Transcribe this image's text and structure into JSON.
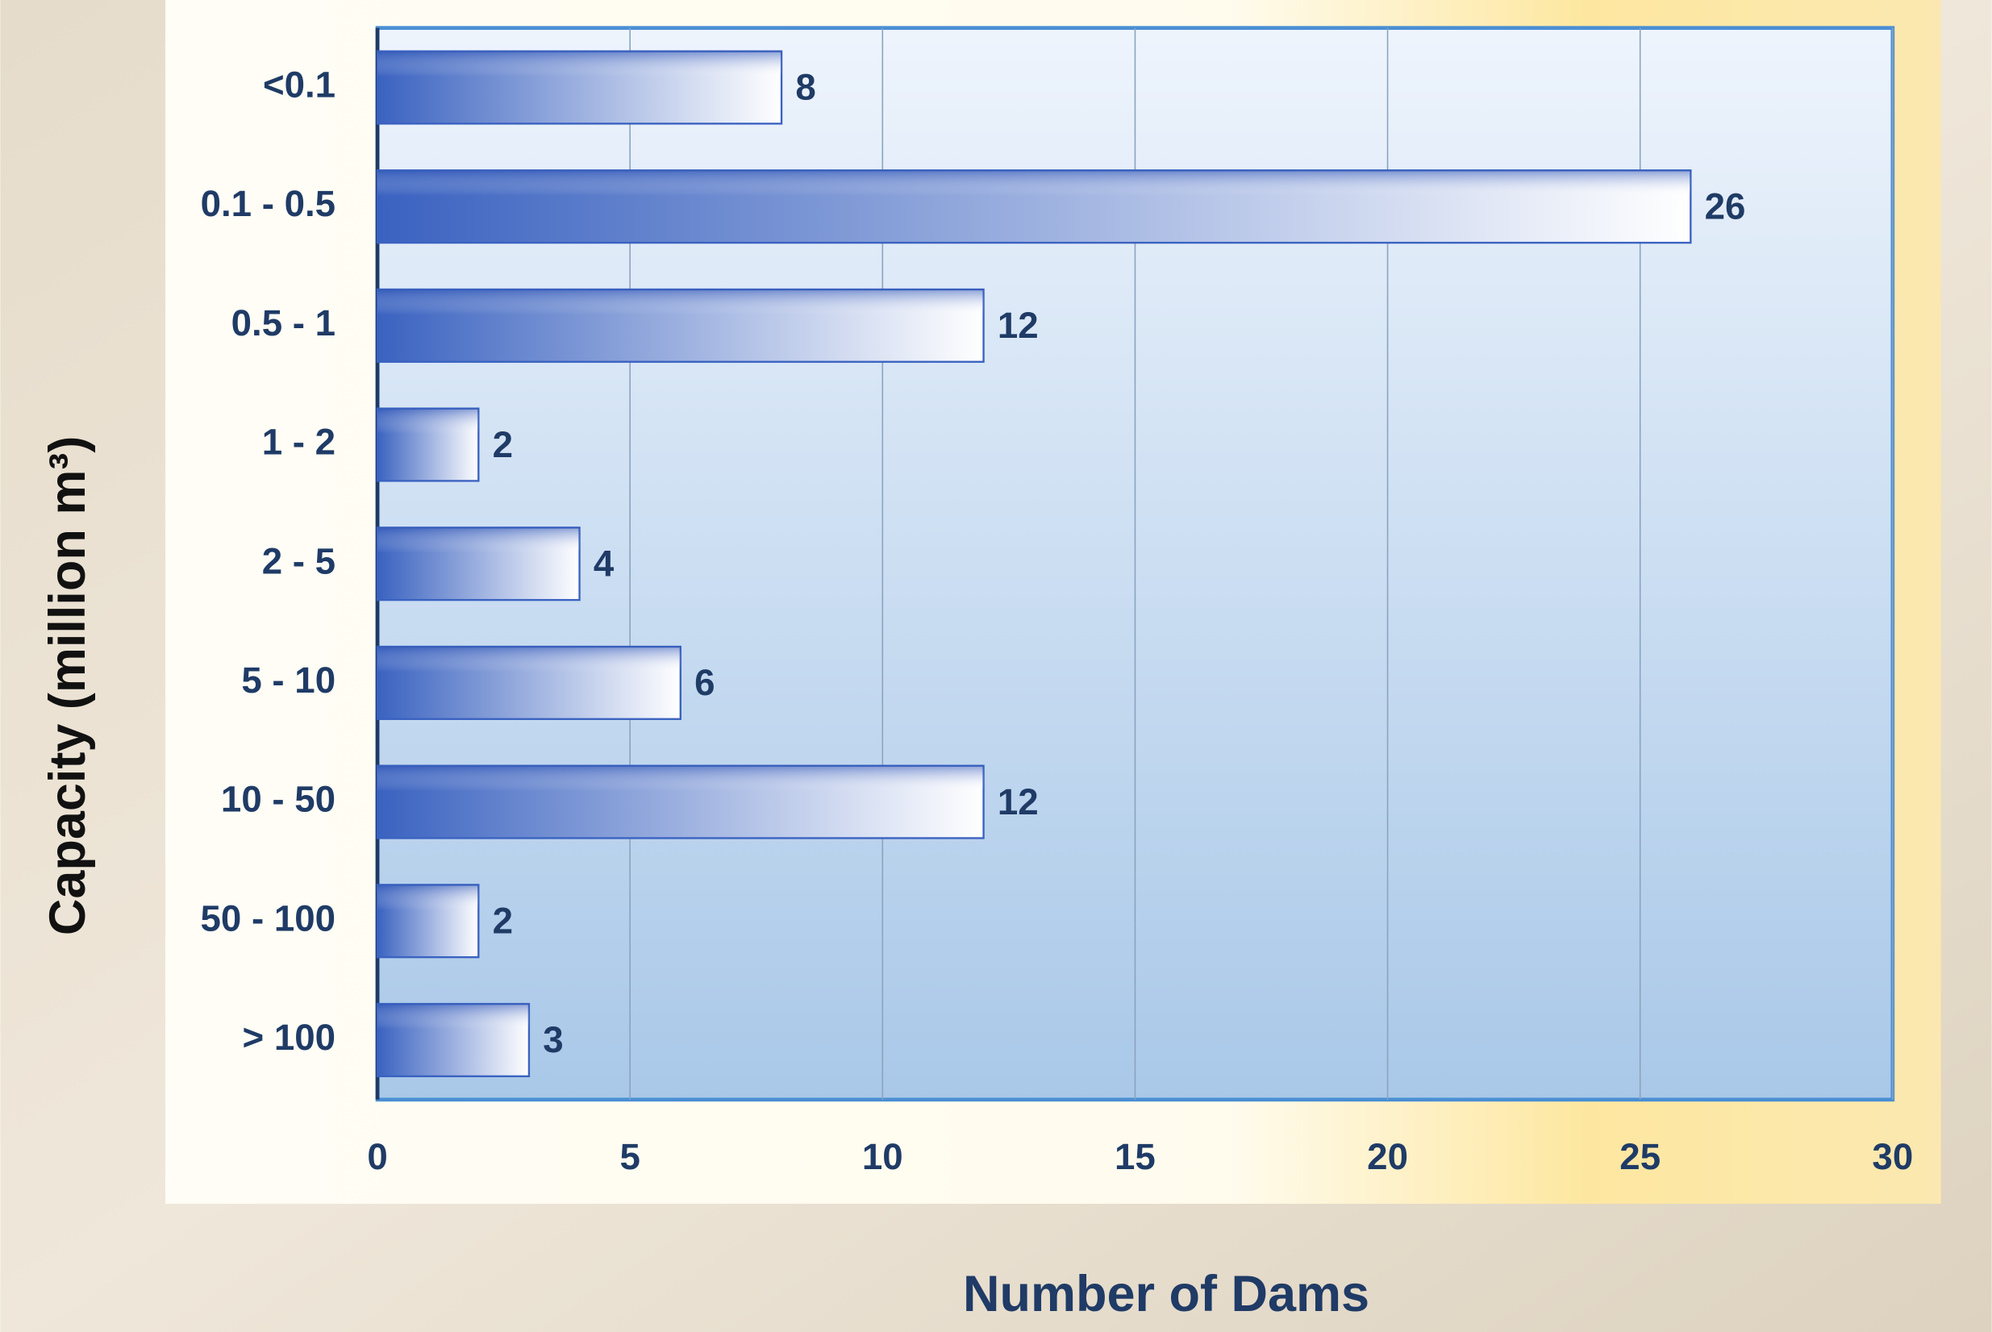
{
  "chart_data": {
    "type": "bar",
    "orientation": "horizontal",
    "x_label": "Number of Dams",
    "y_label": "Capacity (million m³)",
    "categories": [
      "<0.1",
      "0.1 - 0.5",
      "0.5 - 1",
      "1 - 2",
      "2 - 5",
      "5 - 10",
      "10 - 50",
      "50 - 100",
      "> 100"
    ],
    "values": [
      8,
      26,
      12,
      2,
      4,
      6,
      12,
      2,
      3
    ],
    "color": "#3a62c0",
    "xlim": [
      0,
      30
    ],
    "xticks": [
      0,
      5,
      10,
      15,
      20,
      25,
      30
    ],
    "grid": true
  }
}
